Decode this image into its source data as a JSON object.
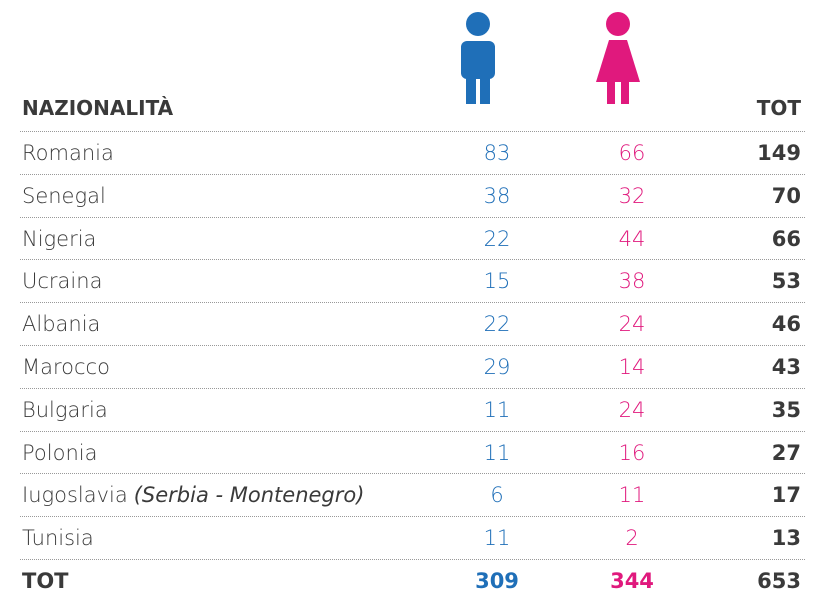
{
  "header": {
    "nationality": "NAZIONALITÀ",
    "total": "TOT"
  },
  "rows": [
    {
      "name": "Romania",
      "male": 83,
      "female": 66,
      "total": 149
    },
    {
      "name": "Senegal",
      "male": 38,
      "female": 32,
      "total": 70
    },
    {
      "name": "Nigeria",
      "male": 22,
      "female": 44,
      "total": 66
    },
    {
      "name": "Ucraina",
      "male": 15,
      "female": 38,
      "total": 53
    },
    {
      "name": "Albania",
      "male": 22,
      "female": 24,
      "total": 46
    },
    {
      "name": "Marocco",
      "male": 29,
      "female": 14,
      "total": 43
    },
    {
      "name": "Bulgaria",
      "male": 11,
      "female": 24,
      "total": 35
    },
    {
      "name": "Polonia",
      "male": 11,
      "female": 16,
      "total": 27
    },
    {
      "name": "Iugoslavia",
      "note": "(Serbia - Montenegro)",
      "male": 6,
      "female": 11,
      "total": 17
    },
    {
      "name": "Tunisia",
      "male": 11,
      "female": 2,
      "total": 13
    }
  ],
  "footer": {
    "label": "TOT",
    "male": 309,
    "female": 344,
    "total": 653
  }
}
